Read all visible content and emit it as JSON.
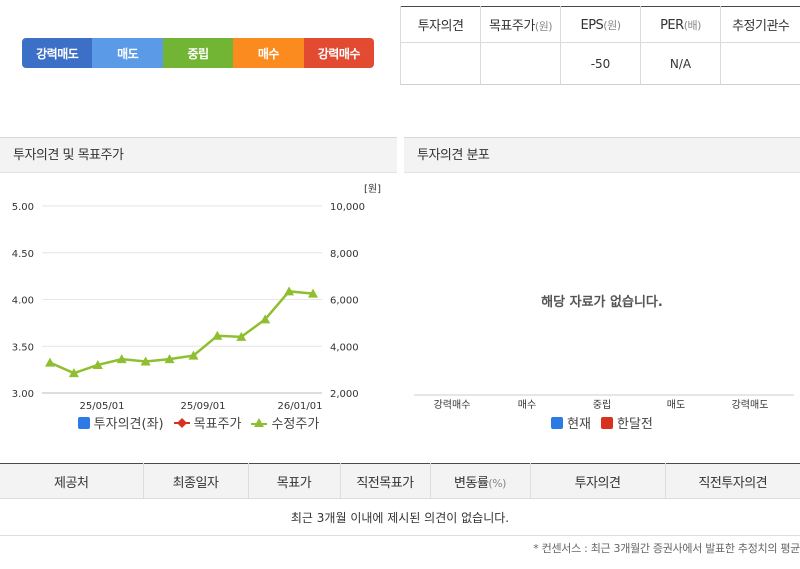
{
  "scale": {
    "items": [
      {
        "label": "강력매도",
        "color": "#3c6fc6"
      },
      {
        "label": "매도",
        "color": "#5b9ae6"
      },
      {
        "label": "중립",
        "color": "#72b535"
      },
      {
        "label": "매수",
        "color": "#fb8b1e"
      },
      {
        "label": "강력매수",
        "color": "#e24b32"
      }
    ]
  },
  "summary": {
    "headers": [
      {
        "label": "투자의견",
        "unit": ""
      },
      {
        "label": "목표주가",
        "unit": "(원)"
      },
      {
        "label": "EPS",
        "unit": "(원)"
      },
      {
        "label": "PER",
        "unit": "(배)"
      },
      {
        "label": "추정기관수",
        "unit": ""
      }
    ],
    "values": [
      "",
      "",
      "-50",
      "N/A",
      ""
    ]
  },
  "left_panel": {
    "title": "투자의견 및 목표주가",
    "unit_label": "[원]",
    "legend": [
      {
        "label": "투자의견(좌)",
        "color": "#2c7be5",
        "marker": "square"
      },
      {
        "label": "목표주가",
        "color": "#d9301f",
        "marker": "diamond"
      },
      {
        "label": "수정주가",
        "color": "#8fbf2f",
        "marker": "triangle"
      }
    ]
  },
  "right_panel": {
    "title": "투자의견 분포",
    "nodata": "해당 자료가 없습니다.",
    "categories": [
      "강력매수",
      "매수",
      "중립",
      "매도",
      "강력매도"
    ],
    "legend": [
      {
        "label": "현재",
        "color": "#2c7be5"
      },
      {
        "label": "한달전",
        "color": "#d9301f"
      }
    ]
  },
  "chart_data": {
    "type": "line",
    "x_tick_labels": [
      "25/05/01",
      "25/09/01",
      "26/01/01"
    ],
    "y_left": {
      "ticks": [
        "5.00",
        "4.50",
        "4.00",
        "3.50",
        "3.00"
      ],
      "range": [
        3.0,
        5.0
      ]
    },
    "y_right": {
      "ticks": [
        "10,000",
        "8,000",
        "6,000",
        "4,000",
        "2,000"
      ],
      "range": [
        2000,
        10000
      ],
      "unit": "[원]"
    },
    "series": [
      {
        "name": "수정주가",
        "axis": "right",
        "color": "#8fbf2f",
        "values": [
          3300,
          2850,
          3200,
          3450,
          3350,
          3450,
          3600,
          4450,
          4400,
          5150,
          6350,
          6250
        ]
      }
    ]
  },
  "opinion_table": {
    "headers": [
      {
        "label": "제공처",
        "unit": ""
      },
      {
        "label": "최종일자",
        "unit": ""
      },
      {
        "label": "목표가",
        "unit": ""
      },
      {
        "label": "직전목표가",
        "unit": ""
      },
      {
        "label": "변동률",
        "unit": "(%)"
      },
      {
        "label": "투자의견",
        "unit": ""
      },
      {
        "label": "직전투자의견",
        "unit": ""
      }
    ],
    "empty_message": "최근 3개월 이내에 제시된 의견이 없습니다."
  },
  "footnote": "* 컨센서스 : 최근 3개월간 증권사에서 발표한 추정치의 평균"
}
